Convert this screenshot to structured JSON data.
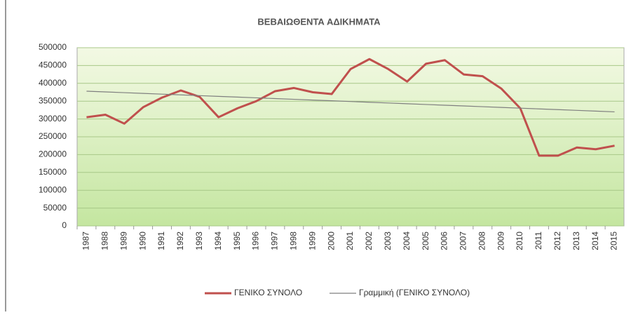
{
  "chart_data": {
    "type": "line",
    "title": "ΒΕΒΑΙΩΘΕΝΤΑ ΑΔΙΚΗΜΑΤΑ",
    "categories": [
      "1987",
      "1988",
      "1989",
      "1990",
      "1991",
      "1992",
      "1993",
      "1994",
      "1995",
      "1996",
      "1997",
      "1998",
      "1999",
      "2000",
      "2001",
      "2002",
      "2003",
      "2004",
      "2005",
      "2006",
      "2007",
      "2008",
      "2009",
      "2010",
      "2011",
      "2012",
      "2013",
      "2014",
      "2015"
    ],
    "series": [
      {
        "name": "ΓΕΝΙΚΟ ΣΥΝΟΛΟ",
        "color": "#c0504d",
        "values": [
          305000,
          312000,
          287000,
          333000,
          360000,
          380000,
          362000,
          305000,
          330000,
          350000,
          378000,
          387000,
          375000,
          370000,
          440000,
          468000,
          440000,
          405000,
          455000,
          465000,
          425000,
          420000,
          385000,
          330000,
          197000,
          197000,
          220000,
          215000,
          225000
        ]
      },
      {
        "name": "Γραμμική (ΓΕΝΙΚΟ ΣΥΝΟΛΟ)",
        "color": "#7f7f7f",
        "values": [
          378000,
          375929,
          373857,
          371786,
          369714,
          367643,
          365571,
          363500,
          361429,
          359357,
          357286,
          355214,
          353143,
          351071,
          349000,
          346929,
          344857,
          342786,
          340714,
          338643,
          336571,
          334500,
          332429,
          330357,
          328286,
          326214,
          324143,
          322071,
          320000
        ]
      }
    ],
    "ylim": [
      0,
      500000
    ],
    "yticks": [
      0,
      50000,
      100000,
      150000,
      200000,
      250000,
      300000,
      350000,
      400000,
      450000,
      500000
    ],
    "grid": true,
    "legend": "bottom"
  }
}
